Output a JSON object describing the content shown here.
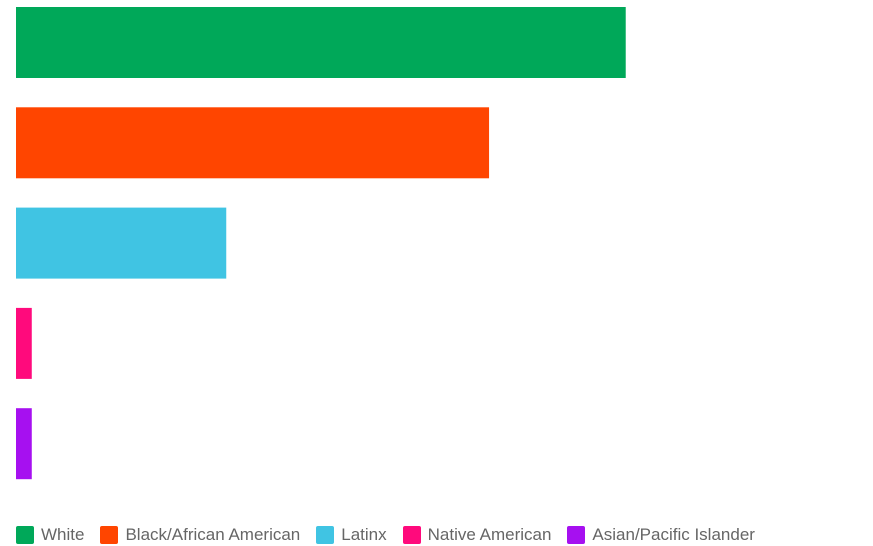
{
  "chart_data": {
    "type": "bar",
    "orientation": "horizontal",
    "categories": [
      "White",
      "Black/African American",
      "Latinx",
      "Native American",
      "Asian/Pacific Islander"
    ],
    "values": [
      58,
      45,
      20,
      1.5,
      1.5
    ],
    "xlim": [
      0,
      80
    ],
    "grid": false,
    "legend_position": "bottom",
    "colors": [
      "#00A859",
      "#FF4500",
      "#40C4E3",
      "#FF0A7C",
      "#A610F0"
    ]
  }
}
